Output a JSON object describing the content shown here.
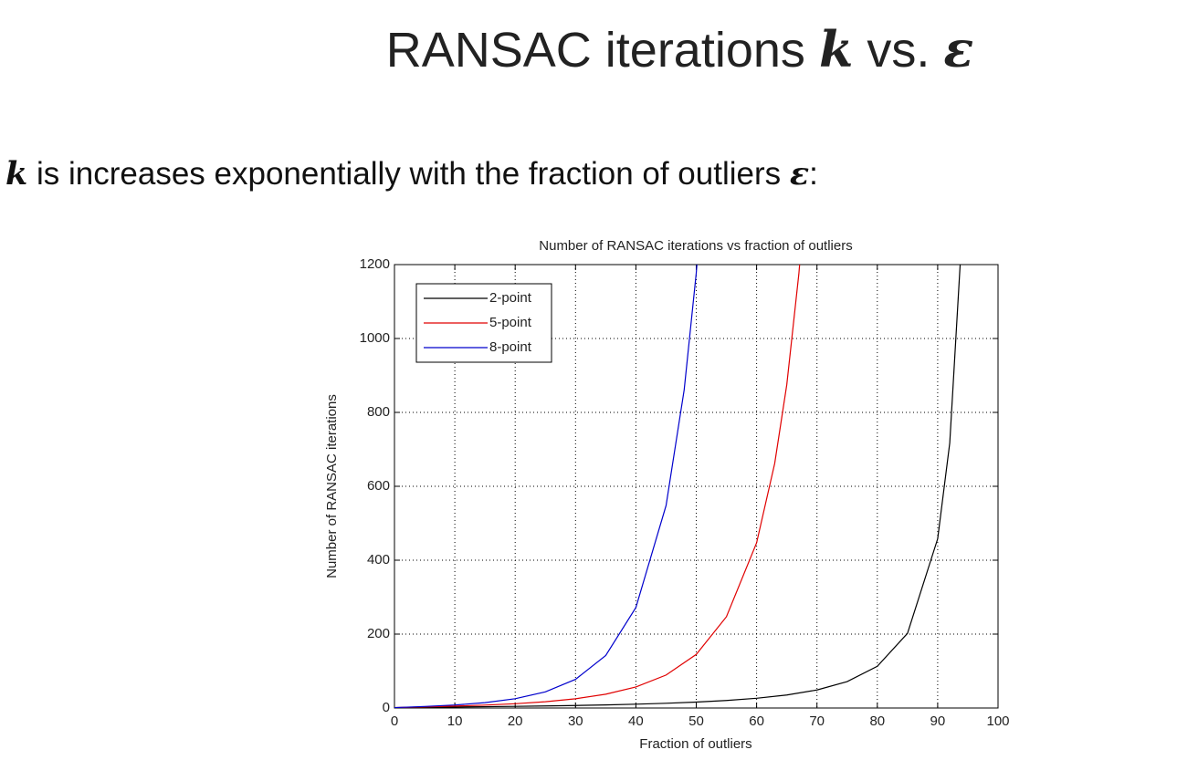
{
  "slide": {
    "title": {
      "text": "RANSAC iterations",
      "k": "k",
      "vs": "vs.",
      "epsilon": "ε"
    },
    "subtitle": {
      "k": "k",
      "text": "is increases exponentially with the fraction of outliers",
      "epsilon": "ε",
      "colon": ":"
    }
  },
  "chart_data": {
    "type": "line",
    "title": "Number of RANSAC iterations vs fraction of outliers",
    "xlabel": "Fraction of outliers",
    "ylabel": "Number of RANSAC iterations",
    "xlim": [
      0,
      100
    ],
    "ylim": [
      0,
      1200
    ],
    "xticks": [
      0,
      10,
      20,
      30,
      40,
      50,
      60,
      70,
      80,
      90,
      100
    ],
    "yticks": [
      0,
      200,
      400,
      600,
      800,
      1000,
      1200
    ],
    "grid": true,
    "legend": "upper-left",
    "series": [
      {
        "name": "2-point",
        "color": "#000000",
        "x": [
          0,
          5,
          10,
          15,
          20,
          25,
          30,
          35,
          40,
          45,
          50,
          55,
          60,
          65,
          70,
          75,
          80,
          85,
          90,
          92,
          94
        ],
        "values": [
          1,
          2,
          2.8,
          3.6,
          4.5,
          5.6,
          6.8,
          8.4,
          10.3,
          12.8,
          16,
          20.4,
          26.4,
          35.2,
          48.8,
          71.4,
          112.8,
          202,
          458,
          717,
          1277
        ]
      },
      {
        "name": "5-point",
        "color": "#e00000",
        "x": [
          0,
          5,
          10,
          15,
          20,
          25,
          30,
          35,
          40,
          45,
          50,
          55,
          60,
          63,
          65,
          67,
          68
        ],
        "values": [
          1,
          3.1,
          5.2,
          7.9,
          11.6,
          17,
          25,
          37.3,
          56.9,
          89.2,
          145,
          247,
          447,
          662,
          875,
          1175,
          1370
        ]
      },
      {
        "name": "8-point",
        "color": "#0000cc",
        "x": [
          0,
          5,
          10,
          15,
          20,
          25,
          30,
          35,
          40,
          45,
          48,
          50,
          51
        ],
        "values": [
          1,
          4.2,
          8.2,
          14.5,
          25.1,
          43.7,
          77.6,
          142,
          272,
          548,
          861,
          1177,
          1384
        ]
      }
    ]
  }
}
